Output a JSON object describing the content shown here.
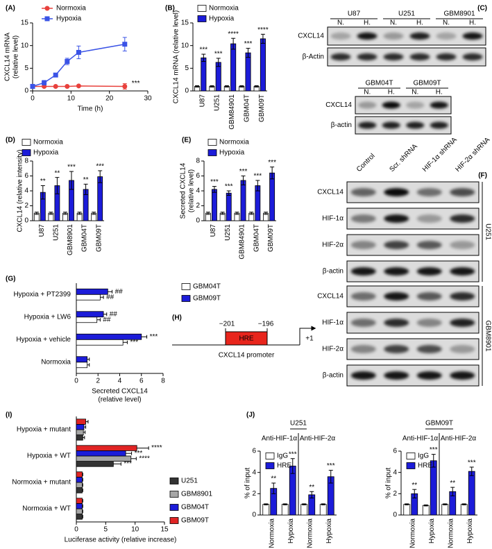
{
  "chart_data": [
    {
      "panel": "(A)",
      "type": "line",
      "x": [
        0,
        3,
        6,
        9,
        12,
        24
      ],
      "xlim": [
        0,
        30
      ],
      "xticks": [
        0,
        10,
        20,
        30
      ],
      "ylim": [
        0,
        15
      ],
      "yticks": [
        0,
        5,
        10,
        15
      ],
      "xlabel": [
        "Time (h)"
      ],
      "ylabel": [
        "CXCL14 mRNA",
        "(relative level)"
      ],
      "annotation": "***",
      "series": [
        {
          "name": "Normoxia",
          "color": "#e8413c",
          "marker": "circle",
          "values": [
            1,
            1,
            1,
            1,
            1.1,
            1.0
          ],
          "errors": [
            0.1,
            0.1,
            0.1,
            0.1,
            0.1,
            0.6
          ]
        },
        {
          "name": "Hypoxia",
          "color": "#3a53e6",
          "marker": "square",
          "values": [
            1,
            1.8,
            3.5,
            6.5,
            8.5,
            10.3
          ],
          "errors": [
            0.1,
            0.5,
            0.4,
            0.7,
            1.4,
            1.5
          ]
        }
      ]
    },
    {
      "panel": "(B)",
      "type": "bar",
      "categories": [
        "U87",
        "U251",
        "GBM84901",
        "GBM04T",
        "GBM09T"
      ],
      "ylim": [
        0,
        15
      ],
      "yticks": [
        0,
        5,
        10,
        15
      ],
      "ylabel": [
        "CXCL14 mRNA (relative level)"
      ],
      "series": [
        {
          "name": "Normoxia",
          "color": "#ffffff",
          "values": [
            1,
            1,
            1,
            1,
            1
          ],
          "errors": [
            0.15,
            0.15,
            0.15,
            0.15,
            0.15
          ]
        },
        {
          "name": "Hypoxia",
          "color": "#1c1cd9",
          "values": [
            7.3,
            6.3,
            10.4,
            8.4,
            11.5
          ],
          "errors": [
            0.8,
            0.9,
            1.2,
            1.0,
            1.0
          ],
          "significance": [
            "***",
            "***",
            "****",
            "***",
            "****"
          ]
        }
      ]
    },
    {
      "panel": "(D)",
      "type": "bar",
      "categories": [
        "U87",
        "U251",
        "GBM8901",
        "GBM04T",
        "GBM09T"
      ],
      "ylim": [
        0,
        8
      ],
      "yticks": [
        0,
        2,
        4,
        6,
        8
      ],
      "ylabel": [
        "CXCL14 (relative intensity)"
      ],
      "series": [
        {
          "name": "Normoxia",
          "color": "#ffffff",
          "values": [
            1,
            1,
            1,
            1,
            1
          ],
          "errors": [
            0.15,
            0.15,
            0.15,
            0.15,
            0.15
          ]
        },
        {
          "name": "Hypoxia",
          "color": "#1c1cd9",
          "values": [
            3.8,
            4.7,
            5.4,
            4.2,
            5.9
          ],
          "errors": [
            0.9,
            1.1,
            1.2,
            0.7,
            0.8
          ],
          "significance": [
            "**",
            "**",
            "***",
            "**",
            "***"
          ]
        }
      ]
    },
    {
      "panel": "(E)",
      "type": "bar",
      "categories": [
        "U87",
        "U251",
        "GBM84901",
        "GBM04T",
        "GBM09T"
      ],
      "ylim": [
        0,
        8
      ],
      "yticks": [
        0,
        2,
        4,
        6,
        8
      ],
      "ylabel": [
        "Secreted CXCL14",
        "(relative level)"
      ],
      "series": [
        {
          "name": "Normoxia",
          "color": "#ffffff",
          "values": [
            1,
            1,
            1,
            1,
            1
          ],
          "errors": [
            0.15,
            0.15,
            0.15,
            0.15,
            0.15
          ]
        },
        {
          "name": "Hypoxia",
          "color": "#1c1cd9",
          "values": [
            4.2,
            3.7,
            5.4,
            4.7,
            6.4
          ],
          "errors": [
            0.4,
            0.3,
            0.6,
            0.7,
            0.8
          ],
          "significance": [
            "***",
            "***",
            "***",
            "***",
            "***"
          ]
        }
      ]
    },
    {
      "panel": "(G)",
      "type": "hbar",
      "categories": [
        "Hypoxia + PT2399",
        "Hypoxia + LW6",
        "Hypoxia + vehicle",
        "Normoxia"
      ],
      "xlim": [
        0,
        8
      ],
      "xticks": [
        0,
        2,
        4,
        6,
        8
      ],
      "xlabel": [
        "Secreted CXCL14",
        "(relative level)"
      ],
      "series": [
        {
          "name": "GBM04T",
          "color": "#ffffff",
          "values": [
            2.2,
            1.9,
            4.3,
            1.0
          ],
          "errors": [
            0.3,
            0.3,
            0.4,
            0.2
          ],
          "significance": [
            "##",
            "##",
            "***",
            null
          ]
        },
        {
          "name": "GBM09T",
          "color": "#1c1cd9",
          "values": [
            2.9,
            2.5,
            6.0,
            1.0
          ],
          "errors": [
            0.4,
            0.3,
            0.5,
            0.2
          ],
          "significance": [
            "##",
            "##",
            "***",
            null
          ]
        }
      ]
    },
    {
      "panel": "(I)",
      "type": "hbar",
      "categories": [
        "Hypoxia + mutant",
        "Hypoxia + WT",
        "Normoxia + mutant",
        "Normoxia + WT"
      ],
      "xlim": [
        0,
        15
      ],
      "xticks": [
        0,
        5,
        10,
        15
      ],
      "xlabel": [
        "Luciferase activity (relative increase)"
      ],
      "series": [
        {
          "name": "U251",
          "color": "#333333",
          "values": [
            1.1,
            6.3,
            1.0,
            1.0
          ],
          "errors": [
            0.3,
            1.3,
            0.1,
            0.1
          ],
          "significance": [
            null,
            "***",
            null,
            null
          ]
        },
        {
          "name": "GBM8901",
          "color": "#a6a6a6",
          "values": [
            1.2,
            9.3,
            1.0,
            1.0
          ],
          "errors": [
            0.3,
            0.9,
            0.1,
            0.1
          ],
          "significance": [
            null,
            "****",
            null,
            null
          ]
        },
        {
          "name": "GBM04T",
          "color": "#1c1cd9",
          "values": [
            1.3,
            8.4,
            1.0,
            1.0
          ],
          "errors": [
            0.3,
            1.0,
            0.1,
            0.1
          ],
          "significance": [
            null,
            "***",
            null,
            null
          ]
        },
        {
          "name": "GBM09T",
          "color": "#e02424",
          "values": [
            1.6,
            10.3,
            1.0,
            1.0
          ],
          "errors": [
            0.4,
            2.0,
            0.1,
            0.1
          ],
          "significance": [
            null,
            "****",
            null,
            null
          ]
        }
      ]
    },
    {
      "panel": "(J)",
      "type": "bar",
      "title": "U251",
      "groups": [
        "Anti-HIF-1α",
        "Anti-HIF-2α"
      ],
      "categories": [
        "Normoxia",
        "Hypoxia",
        "Normoxia",
        "Hypoxia"
      ],
      "ylim": [
        0,
        6
      ],
      "yticks": [
        0,
        2,
        4,
        6
      ],
      "ylabel": [
        "% of input"
      ],
      "series": [
        {
          "name": "IgG",
          "color": "#ffffff",
          "values": [
            1,
            1,
            1,
            1
          ],
          "errors": [
            0.05,
            0.05,
            0.05,
            0.05
          ]
        },
        {
          "name": "HRE",
          "color": "#1c1cd9",
          "values": [
            2.5,
            4.6,
            1.9,
            3.6
          ],
          "errors": [
            0.5,
            0.7,
            0.3,
            0.6
          ],
          "significance": [
            "**",
            "***",
            "**",
            "***"
          ]
        }
      ]
    },
    {
      "type": "bar",
      "title": "GBM09T",
      "groups": [
        "Anti-HIF-1α",
        "Anti-HIF-2α"
      ],
      "categories": [
        "Normoxia",
        "Hypoxia",
        "Normoxia",
        "Hypoxia"
      ],
      "ylim": [
        0,
        6
      ],
      "yticks": [
        0,
        2,
        4,
        6
      ],
      "ylabel": [
        "% of input"
      ],
      "series": [
        {
          "name": "IgG",
          "color": "#ffffff",
          "values": [
            1,
            0.9,
            1,
            1
          ],
          "errors": [
            0.05,
            0.05,
            0.05,
            0.05
          ]
        },
        {
          "name": "HRE",
          "color": "#1c1cd9",
          "values": [
            2.0,
            5.1,
            2.2,
            4.1
          ],
          "errors": [
            0.4,
            0.6,
            0.4,
            0.4
          ],
          "significance": [
            "**",
            "***",
            "**",
            "***"
          ]
        }
      ]
    }
  ],
  "blot_c": {
    "panel": "(C)",
    "upper": {
      "cell_lines": [
        "U87",
        "U251",
        "GBM8901"
      ],
      "lanes": [
        "N.",
        "H.",
        "N.",
        "H.",
        "N.",
        "H."
      ],
      "rows": [
        "CXCL14",
        "β-Actin"
      ]
    },
    "lower": {
      "cell_lines": [
        "GBM04T",
        "GBM09T"
      ],
      "lanes": [
        "N.",
        "H.",
        "N.",
        "H."
      ],
      "rows": [
        "CXCL14",
        "β-actin"
      ]
    }
  },
  "blot_f": {
    "panel": "(F)",
    "lanes": [
      "Control",
      "Scr. shRNA",
      "HIF-1α shRNA",
      "HIF-2α shRNA"
    ],
    "groups": [
      {
        "name": "U251",
        "rows": [
          "CXCL14",
          "HIF-1α",
          "HIF-2α",
          "β-actin"
        ]
      },
      {
        "name": "GBM8901",
        "rows": [
          "CXCL14",
          "HIF-1α",
          "HIF-2α",
          "β-actin"
        ]
      }
    ]
  },
  "diagram_h": {
    "panel": "(H)",
    "positions": [
      "−201",
      "−196"
    ],
    "element": "HRE",
    "tss": "+1",
    "label": "CXCL14 promoter"
  }
}
